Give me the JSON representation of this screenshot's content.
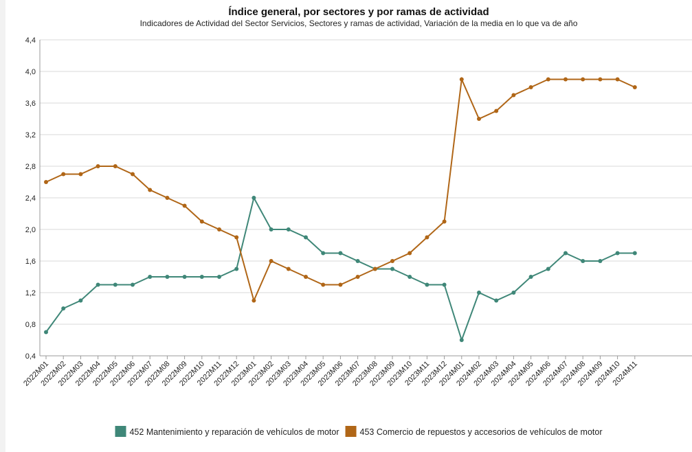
{
  "chart_data": {
    "type": "line",
    "title": "Índice general, por sectores y por ramas de actividad",
    "subtitle": "Indicadores de Actividad del Sector Servicios, Sectores y ramas de actividad, Variación de la media en lo que va de año",
    "xlabel": "",
    "ylabel": "",
    "ylim": [
      0.4,
      4.4
    ],
    "yticks": [
      "0,4",
      "0,8",
      "1,2",
      "1,6",
      "2,0",
      "2,4",
      "2,8",
      "3,2",
      "3,6",
      "4,0",
      "4,4"
    ],
    "grid": true,
    "legend_position": "bottom",
    "categories": [
      "2022M01",
      "2022M02",
      "2022M03",
      "2022M04",
      "2022M05",
      "2022M06",
      "2022M07",
      "2022M08",
      "2022M09",
      "2022M10",
      "2022M11",
      "2022M12",
      "2023M01",
      "2023M02",
      "2023M03",
      "2023M04",
      "2023M05",
      "2023M06",
      "2023M07",
      "2023M08",
      "2023M09",
      "2023M10",
      "2023M11",
      "2023M12",
      "2024M01",
      "2024M02",
      "2024M03",
      "2024M04",
      "2024M05",
      "2024M06",
      "2024M07",
      "2024M08",
      "2024M09",
      "2024M10",
      "2024M11"
    ],
    "series": [
      {
        "name": "452 Mantenimiento y reparación de vehículos de motor",
        "color": "#3f8778",
        "values": [
          0.7,
          1.0,
          1.1,
          1.3,
          1.3,
          1.3,
          1.4,
          1.4,
          1.4,
          1.4,
          1.4,
          1.5,
          2.4,
          2.0,
          2.0,
          1.9,
          1.7,
          1.7,
          1.6,
          1.5,
          1.5,
          1.4,
          1.3,
          1.3,
          0.6,
          1.2,
          1.1,
          1.2,
          1.4,
          1.5,
          1.7,
          1.6,
          1.6,
          1.7,
          1.7
        ]
      },
      {
        "name": "453 Comercio de repuestos y accesorios de vehículos de motor",
        "color": "#b06617",
        "values": [
          2.6,
          2.7,
          2.7,
          2.8,
          2.8,
          2.7,
          2.5,
          2.4,
          2.3,
          2.1,
          2.0,
          1.9,
          1.1,
          1.6,
          1.5,
          1.4,
          1.3,
          1.3,
          1.4,
          1.5,
          1.6,
          1.7,
          1.9,
          2.1,
          3.9,
          3.4,
          3.5,
          3.7,
          3.8,
          3.9,
          3.9,
          3.9,
          3.9,
          3.9,
          3.8
        ]
      }
    ]
  }
}
